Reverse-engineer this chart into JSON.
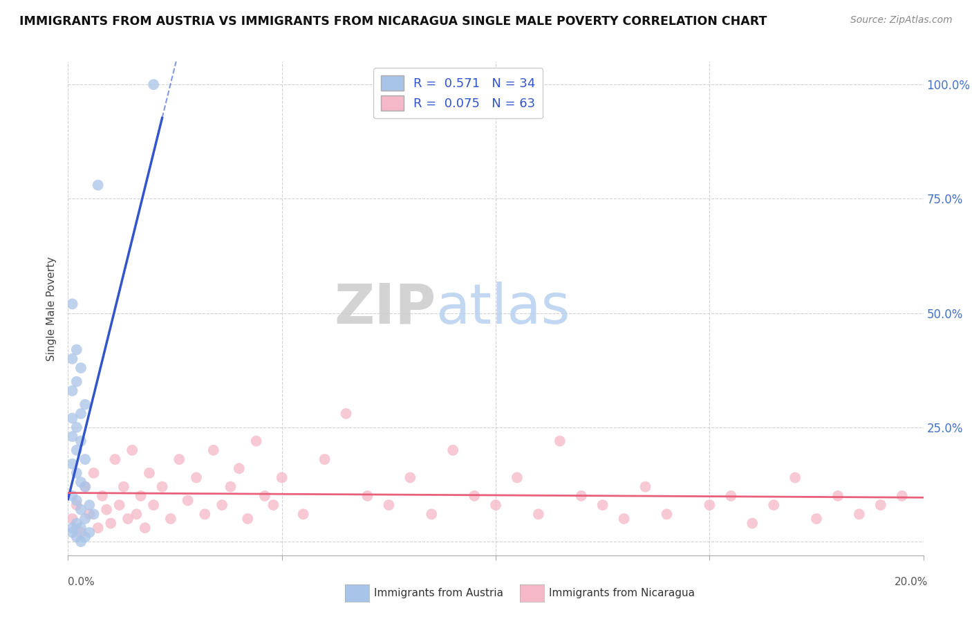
{
  "title": "IMMIGRANTS FROM AUSTRIA VS IMMIGRANTS FROM NICARAGUA SINGLE MALE POVERTY CORRELATION CHART",
  "source": "Source: ZipAtlas.com",
  "ylabel": "Single Male Poverty",
  "austria_color": "#a8c4e8",
  "nicaragua_color": "#f5b8c8",
  "austria_line_color": "#3355cc",
  "nicaragua_line_color": "#e8607a",
  "austria_R": 0.571,
  "austria_N": 34,
  "nicaragua_R": 0.075,
  "nicaragua_N": 63,
  "legend_label_austria": "Immigrants from Austria",
  "legend_label_nicaragua": "Immigrants from Nicaragua",
  "background_color": "#ffffff",
  "watermark_zip": "ZIP",
  "watermark_atlas": "atlas",
  "xlim": [
    0.0,
    0.2
  ],
  "ylim": [
    -0.03,
    1.05
  ],
  "austria_x": [
    0.02,
    0.007,
    0.001,
    0.002,
    0.001,
    0.003,
    0.002,
    0.001,
    0.004,
    0.003,
    0.001,
    0.002,
    0.001,
    0.003,
    0.002,
    0.004,
    0.001,
    0.002,
    0.003,
    0.004,
    0.001,
    0.002,
    0.005,
    0.003,
    0.006,
    0.004,
    0.002,
    0.001,
    0.003,
    0.005,
    0.001,
    0.002,
    0.004,
    0.003
  ],
  "austria_y": [
    1.0,
    0.78,
    0.52,
    0.42,
    0.4,
    0.38,
    0.35,
    0.33,
    0.3,
    0.28,
    0.27,
    0.25,
    0.23,
    0.22,
    0.2,
    0.18,
    0.17,
    0.15,
    0.13,
    0.12,
    0.1,
    0.09,
    0.08,
    0.07,
    0.06,
    0.05,
    0.04,
    0.03,
    0.03,
    0.02,
    0.02,
    0.01,
    0.01,
    0.0
  ],
  "nicaragua_x": [
    0.001,
    0.002,
    0.003,
    0.004,
    0.005,
    0.006,
    0.007,
    0.008,
    0.009,
    0.01,
    0.011,
    0.012,
    0.013,
    0.014,
    0.015,
    0.016,
    0.017,
    0.018,
    0.019,
    0.02,
    0.022,
    0.024,
    0.026,
    0.028,
    0.03,
    0.032,
    0.034,
    0.036,
    0.038,
    0.04,
    0.042,
    0.044,
    0.046,
    0.048,
    0.05,
    0.055,
    0.06,
    0.065,
    0.07,
    0.075,
    0.08,
    0.085,
    0.09,
    0.095,
    0.1,
    0.105,
    0.11,
    0.115,
    0.12,
    0.125,
    0.13,
    0.135,
    0.14,
    0.15,
    0.155,
    0.16,
    0.165,
    0.17,
    0.175,
    0.18,
    0.185,
    0.19,
    0.195
  ],
  "nicaragua_y": [
    0.05,
    0.08,
    0.02,
    0.12,
    0.06,
    0.15,
    0.03,
    0.1,
    0.07,
    0.04,
    0.18,
    0.08,
    0.12,
    0.05,
    0.2,
    0.06,
    0.1,
    0.03,
    0.15,
    0.08,
    0.12,
    0.05,
    0.18,
    0.09,
    0.14,
    0.06,
    0.2,
    0.08,
    0.12,
    0.16,
    0.05,
    0.22,
    0.1,
    0.08,
    0.14,
    0.06,
    0.18,
    0.28,
    0.1,
    0.08,
    0.14,
    0.06,
    0.2,
    0.1,
    0.08,
    0.14,
    0.06,
    0.22,
    0.1,
    0.08,
    0.05,
    0.12,
    0.06,
    0.08,
    0.1,
    0.04,
    0.08,
    0.14,
    0.05,
    0.1,
    0.06,
    0.08,
    0.1
  ]
}
